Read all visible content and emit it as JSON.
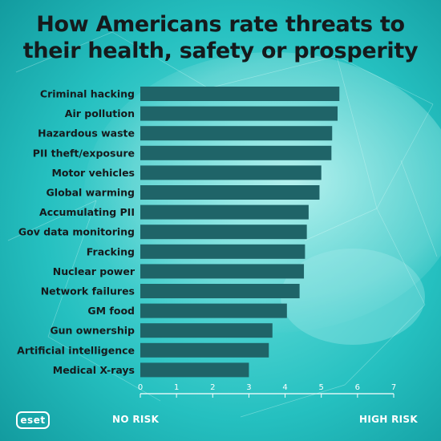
{
  "title_line1": "How Americans rate threats to",
  "title_line2": "their health, safety or prosperity",
  "logo_text": "eset",
  "low_label": "NO RISK",
  "high_label": "HIGH RISK",
  "colors": {
    "background": "#1fb8b8",
    "bar": "#1f6468",
    "text": "#151a1c"
  },
  "chart_data": {
    "type": "bar",
    "orientation": "horizontal",
    "categories": [
      "Criminal hacking",
      "Air pollution",
      "Hazardous waste",
      "PII theft/exposure",
      "Motor vehicles",
      "Global warming",
      "Accumulating PII",
      "Gov data monitoring",
      "Fracking",
      "Nuclear power",
      "Network failures",
      "GM food",
      "Gun ownership",
      "Artificial intelligence",
      "Medical X-rays"
    ],
    "values": [
      5.5,
      5.45,
      5.3,
      5.28,
      5.0,
      4.95,
      4.65,
      4.6,
      4.55,
      4.52,
      4.4,
      4.05,
      3.65,
      3.55,
      3.0
    ],
    "xlim": [
      0,
      7
    ],
    "xticks": [
      "0",
      "1",
      "2",
      "3",
      "4",
      "5",
      "6",
      "7"
    ],
    "xlabel": "",
    "ylabel": "",
    "grid": false
  }
}
